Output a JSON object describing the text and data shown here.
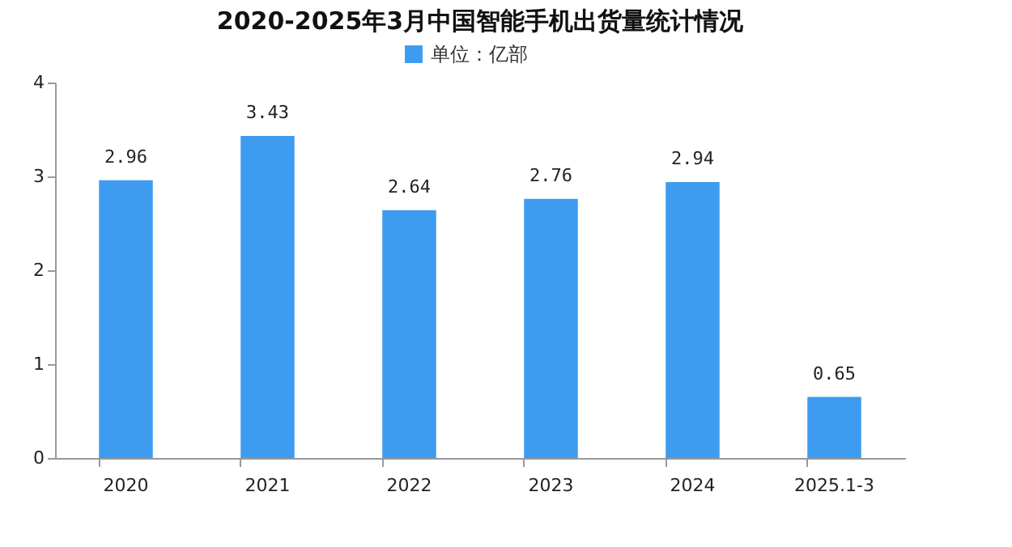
{
  "chart_data": {
    "type": "bar",
    "title": "2020-2025年3月中国智能手机出货量统计情况",
    "categories": [
      "2020",
      "2021",
      "2022",
      "2023",
      "2024",
      "2025.1-3"
    ],
    "series": [
      {
        "name": "单位：亿部",
        "color": "#3d9cf0",
        "values": [
          2.96,
          3.43,
          2.64,
          2.76,
          2.94,
          0.65
        ]
      }
    ],
    "ylim": [
      0,
      4
    ],
    "yticks": [
      0,
      1,
      2,
      3,
      4
    ],
    "grid": false,
    "legend": "top",
    "data_labels": true
  }
}
